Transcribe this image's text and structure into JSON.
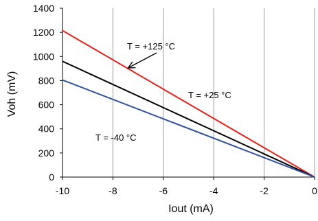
{
  "chart_data": {
    "type": "line",
    "xlabel": "Iout (mA)",
    "ylabel": "Voh (mV)",
    "xlim": [
      -10,
      0
    ],
    "ylim": [
      0,
      1400
    ],
    "xticks": [
      -10,
      -8,
      -6,
      -4,
      -2,
      0
    ],
    "yticks": [
      0,
      200,
      400,
      600,
      800,
      1000,
      1200,
      1400
    ],
    "grid": "vertical",
    "legend": "none",
    "series": [
      {
        "name": "T = +125 °C",
        "color": "#e8231c",
        "x": [
          -10,
          0
        ],
        "y": [
          1215,
          0
        ]
      },
      {
        "name": "T = +25 °C",
        "color": "#000000",
        "x": [
          -10,
          0
        ],
        "y": [
          960,
          0
        ]
      },
      {
        "name": "T = -40 °C",
        "color": "#2e52a3",
        "x": [
          -10,
          0
        ],
        "y": [
          805,
          0
        ]
      }
    ],
    "annotations": [
      {
        "text": "T = +125 °C",
        "arrow_to": [
          -7.4,
          905
        ]
      },
      {
        "text": "T = +25 °C"
      },
      {
        "text": "T = -40 °C"
      }
    ]
  }
}
